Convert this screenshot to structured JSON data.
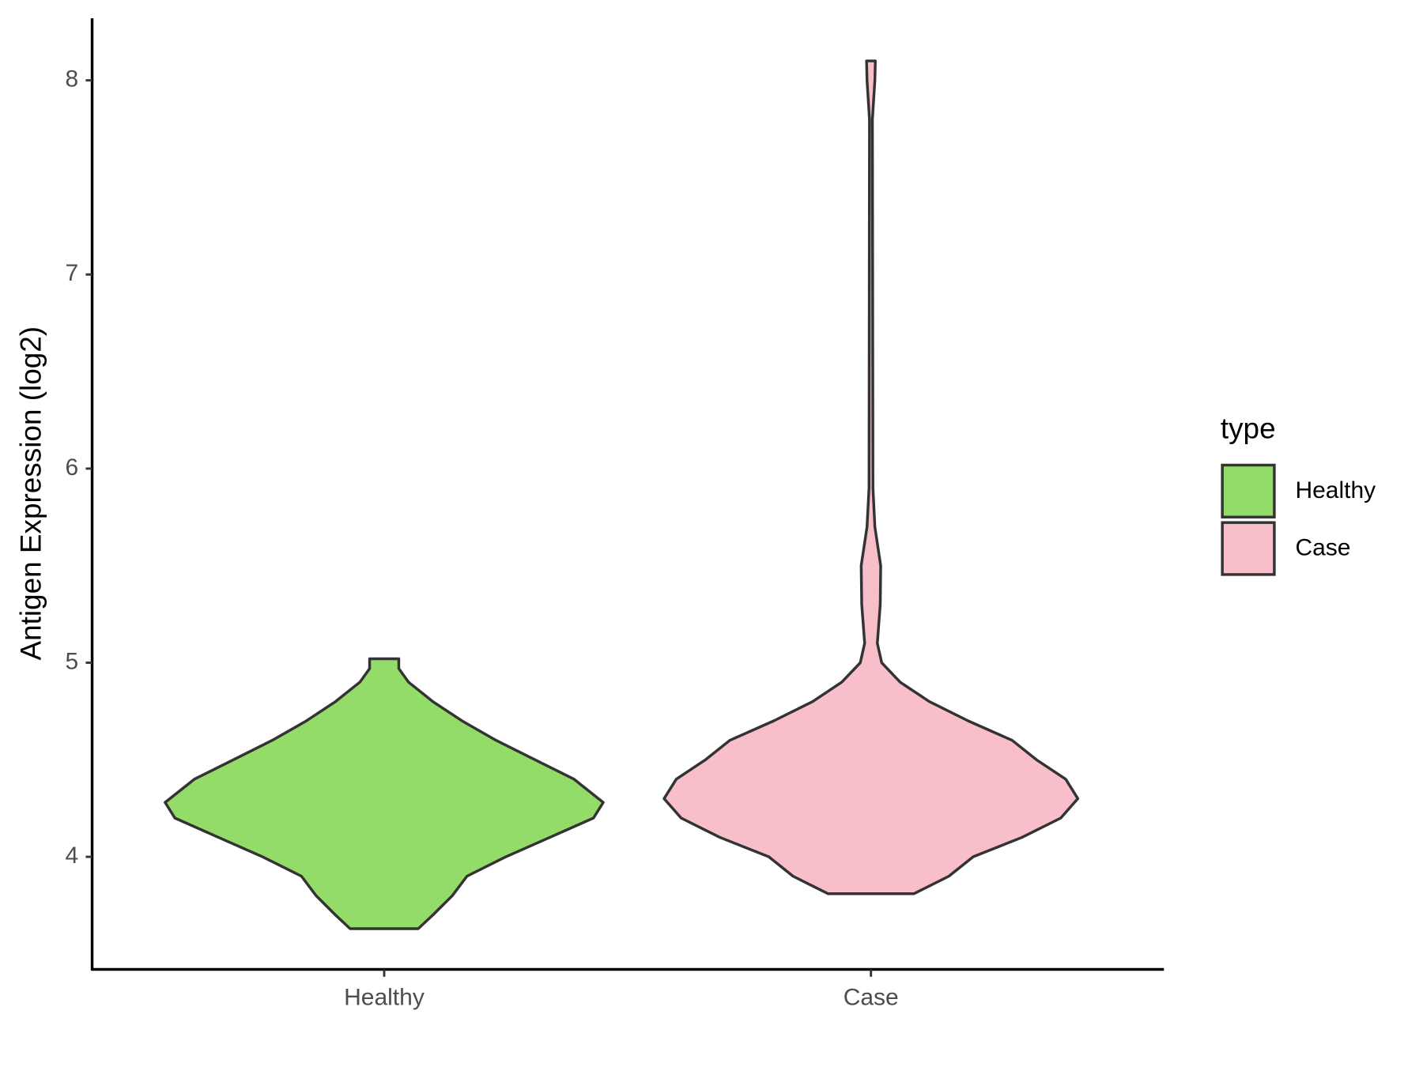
{
  "chart_data": {
    "type": "violin",
    "y_label": "Antigen Expression (log2)",
    "categories": [
      "Healthy",
      "Case"
    ],
    "series": [
      {
        "name": "Healthy",
        "color": "#93dc6a",
        "values": [
          3.63,
          3.7,
          3.8,
          3.9,
          4.0,
          4.1,
          4.2,
          4.28,
          4.4,
          4.5,
          4.6,
          4.7,
          4.8,
          4.9,
          4.97,
          5.02
        ],
        "widths": [
          0.07,
          0.1,
          0.14,
          0.17,
          0.25,
          0.34,
          0.43,
          0.45,
          0.39,
          0.31,
          0.23,
          0.16,
          0.1,
          0.05,
          0.03,
          0.03
        ]
      },
      {
        "name": "Case",
        "color": "#f8bfca",
        "values": [
          3.81,
          3.9,
          4.0,
          4.1,
          4.2,
          4.3,
          4.4,
          4.5,
          4.6,
          4.7,
          4.8,
          4.9,
          5.0,
          5.1,
          5.3,
          5.5,
          5.7,
          5.9,
          7.8,
          8.0,
          8.1
        ],
        "widths": [
          0.088,
          0.16,
          0.21,
          0.31,
          0.39,
          0.425,
          0.4,
          0.34,
          0.29,
          0.2,
          0.12,
          0.06,
          0.022,
          0.013,
          0.019,
          0.02,
          0.008,
          0.004,
          0.003,
          0.008,
          0.009
        ]
      }
    ],
    "ylim": [
      3.42,
      8.32
    ],
    "yticks": [
      4,
      5,
      6,
      7,
      8
    ],
    "legend_title": "type",
    "legend": "right"
  }
}
